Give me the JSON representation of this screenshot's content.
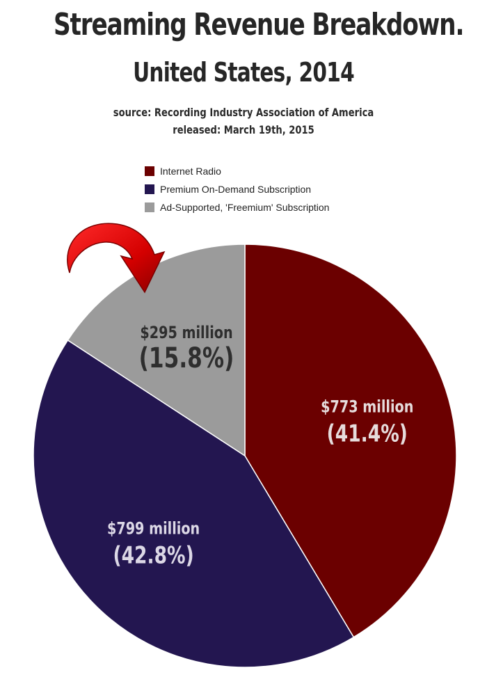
{
  "header": {
    "title": "Streaming Revenue Breakdown.",
    "subtitle": "United States, 2014",
    "source": "source: Recording Industry Association of America",
    "released": "released: March 19th, 2015"
  },
  "chart_data": {
    "type": "pie",
    "title": "Streaming Revenue Breakdown.",
    "subtitle": "United States, 2014",
    "legend_position": "top",
    "slices": [
      {
        "name": "Internet Radio",
        "value": 773,
        "amount_label": "$773 million",
        "percent_label": "(41.4%)",
        "color": "#6b0000",
        "label_color": "#e6dcdc"
      },
      {
        "name": "Premium On-Demand Subscription",
        "value": 799,
        "amount_label": "$799 million",
        "percent_label": "(42.8%)",
        "color": "#231650",
        "label_color": "#dcd8e6"
      },
      {
        "name": "Ad-Supported, 'Freemium' Subscription",
        "value": 295,
        "amount_label": "$295 million",
        "percent_label": "(15.8%)",
        "color": "#9b9b9b",
        "label_color": "#2e2e2e"
      }
    ],
    "annotation": "red curved arrow pointing to Ad-Supported slice"
  }
}
